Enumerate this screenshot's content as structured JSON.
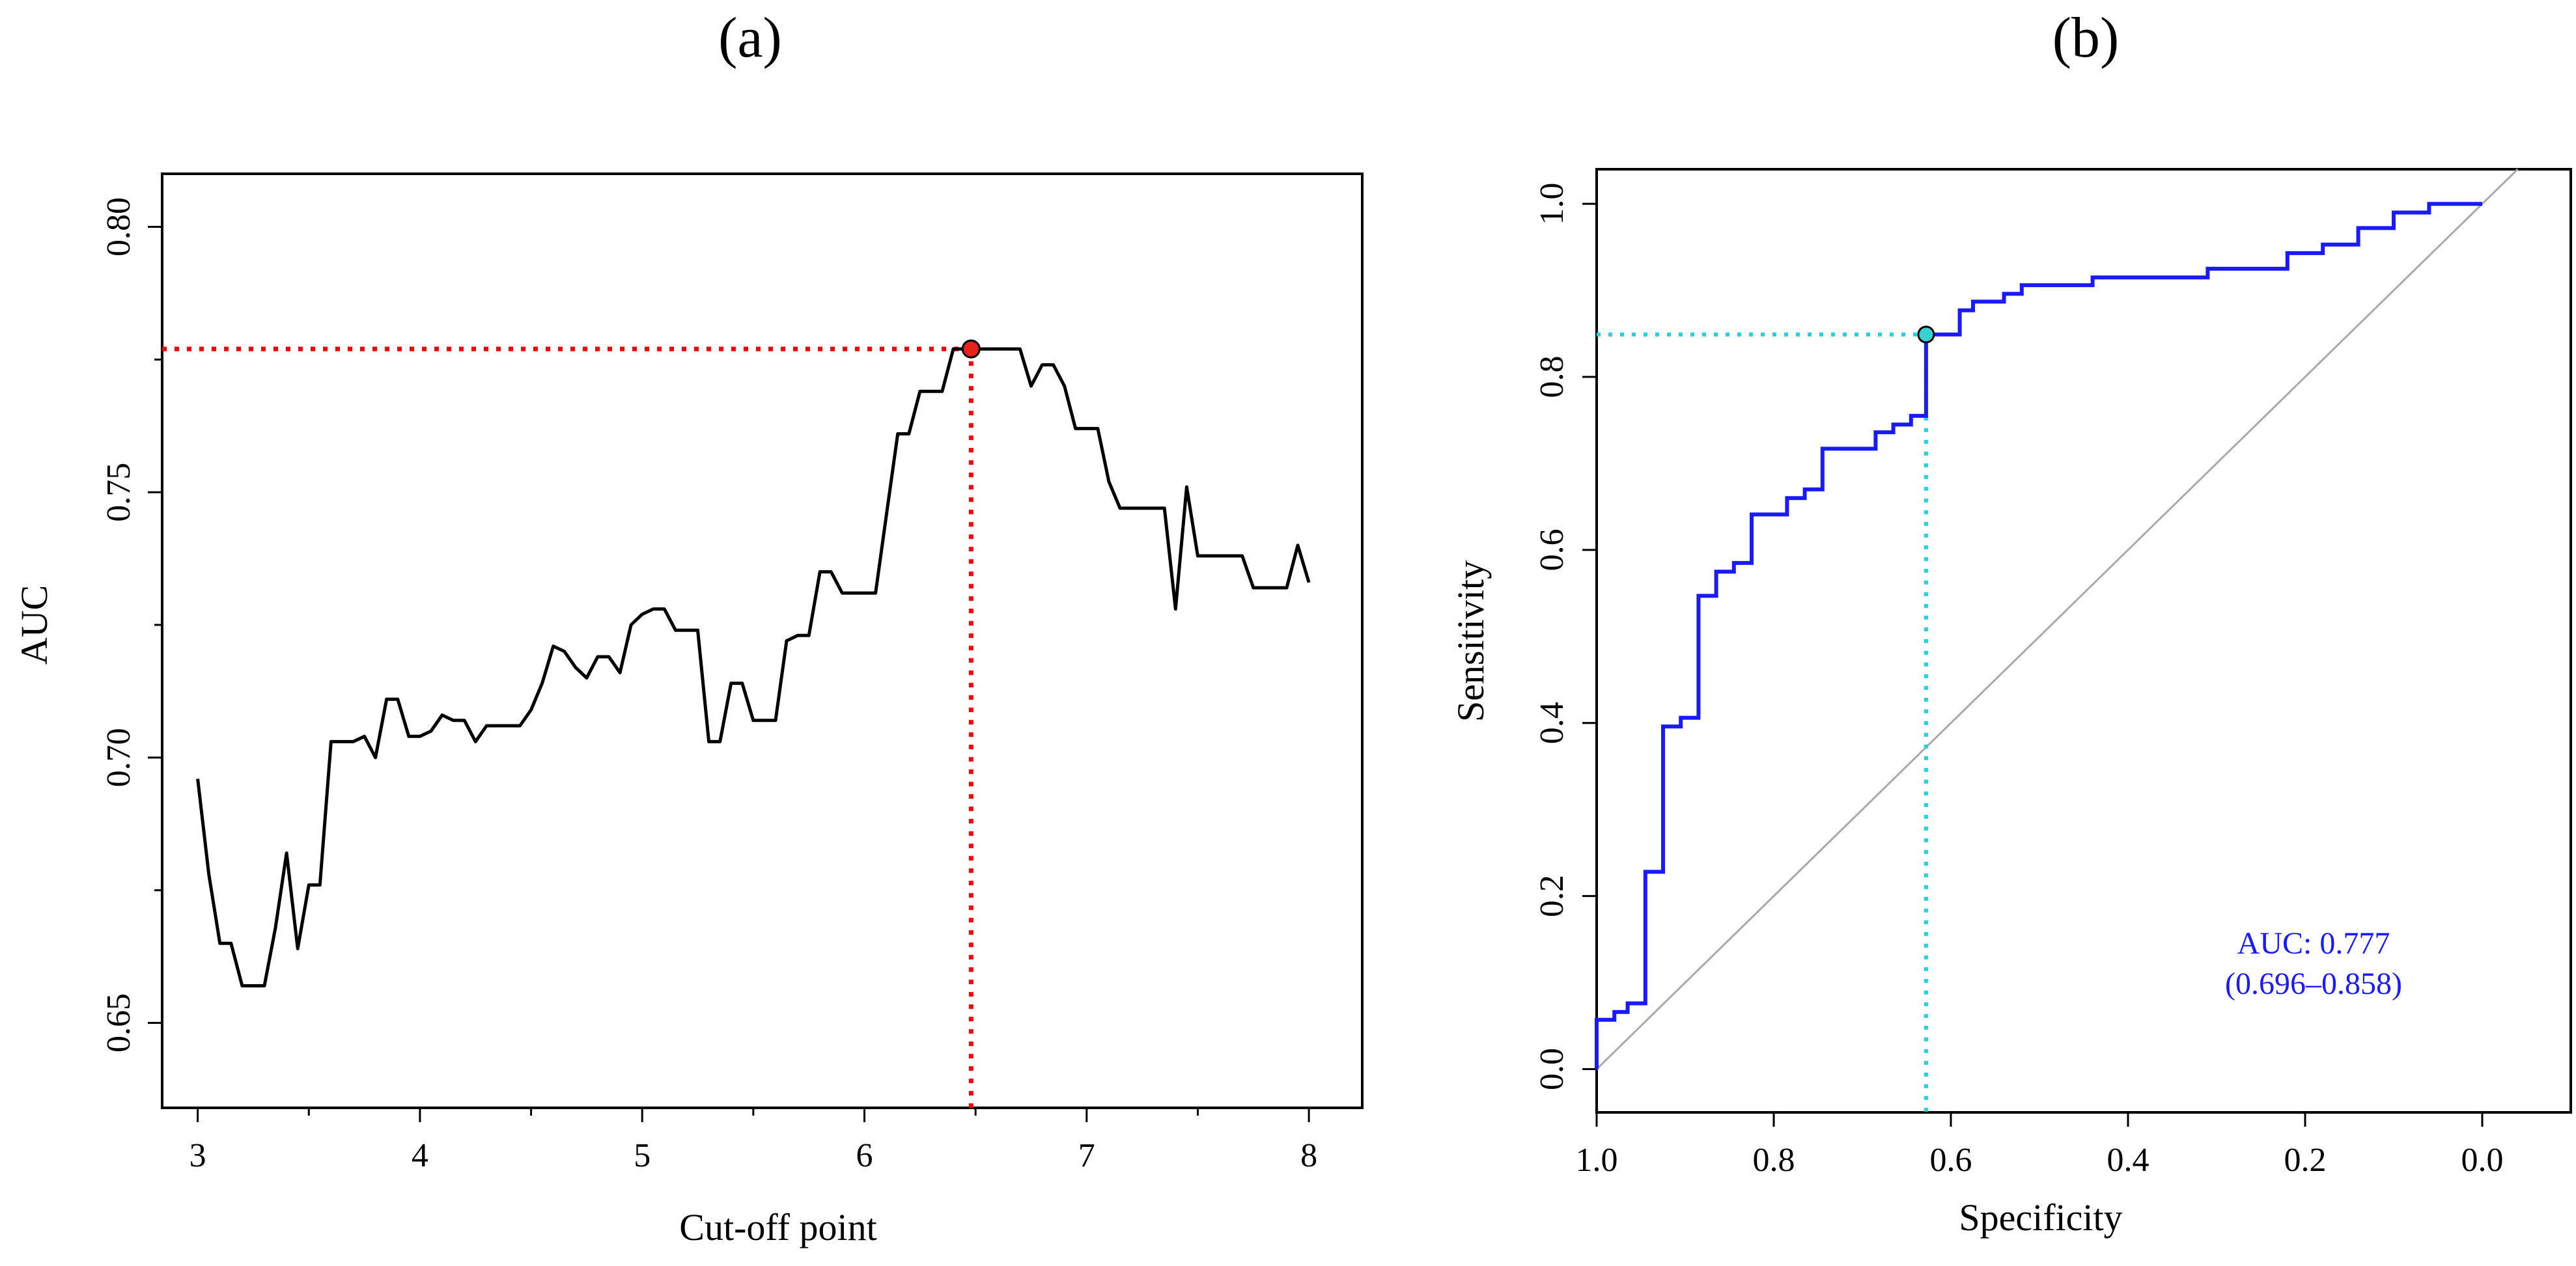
{
  "chart_data": [
    {
      "type": "line",
      "panel_label": "(a)",
      "xlabel": "Cut-off point",
      "ylabel": "AUC",
      "xlim": [
        2.84,
        8.24
      ],
      "ylim": [
        0.634,
        0.81
      ],
      "xticks": [
        3,
        4,
        5,
        6,
        7,
        8
      ],
      "xtick_labels": [
        "3",
        "4",
        "5",
        "6",
        "7",
        "8"
      ],
      "yticks": [
        0.65,
        0.7,
        0.75,
        0.8
      ],
      "ytick_labels": [
        "0.65",
        "0.70",
        "0.75",
        "0.80"
      ],
      "series": [
        {
          "name": "AUC by cut-off",
          "color": "#000000",
          "points": [
            [
              3.0,
              0.696
            ],
            [
              3.05,
              0.678
            ],
            [
              3.1,
              0.665
            ],
            [
              3.15,
              0.665
            ],
            [
              3.2,
              0.657
            ],
            [
              3.25,
              0.657
            ],
            [
              3.3,
              0.657
            ],
            [
              3.35,
              0.668
            ],
            [
              3.4,
              0.682
            ],
            [
              3.45,
              0.664
            ],
            [
              3.5,
              0.676
            ],
            [
              3.55,
              0.676
            ],
            [
              3.6,
              0.703
            ],
            [
              3.65,
              0.703
            ],
            [
              3.7,
              0.703
            ],
            [
              3.75,
              0.704
            ],
            [
              3.8,
              0.7
            ],
            [
              3.85,
              0.711
            ],
            [
              3.9,
              0.711
            ],
            [
              3.95,
              0.704
            ],
            [
              4.0,
              0.704
            ],
            [
              4.05,
              0.705
            ],
            [
              4.1,
              0.708
            ],
            [
              4.15,
              0.707
            ],
            [
              4.2,
              0.707
            ],
            [
              4.25,
              0.703
            ],
            [
              4.3,
              0.706
            ],
            [
              4.35,
              0.706
            ],
            [
              4.4,
              0.706
            ],
            [
              4.45,
              0.706
            ],
            [
              4.5,
              0.709
            ],
            [
              4.55,
              0.714
            ],
            [
              4.6,
              0.721
            ],
            [
              4.65,
              0.72
            ],
            [
              4.7,
              0.717
            ],
            [
              4.75,
              0.715
            ],
            [
              4.8,
              0.719
            ],
            [
              4.85,
              0.719
            ],
            [
              4.9,
              0.716
            ],
            [
              4.95,
              0.725
            ],
            [
              5.0,
              0.727
            ],
            [
              5.05,
              0.728
            ],
            [
              5.1,
              0.728
            ],
            [
              5.15,
              0.724
            ],
            [
              5.2,
              0.724
            ],
            [
              5.25,
              0.724
            ],
            [
              5.3,
              0.703
            ],
            [
              5.35,
              0.703
            ],
            [
              5.4,
              0.714
            ],
            [
              5.45,
              0.714
            ],
            [
              5.5,
              0.707
            ],
            [
              5.55,
              0.707
            ],
            [
              5.6,
              0.707
            ],
            [
              5.65,
              0.722
            ],
            [
              5.7,
              0.723
            ],
            [
              5.75,
              0.723
            ],
            [
              5.8,
              0.735
            ],
            [
              5.85,
              0.735
            ],
            [
              5.9,
              0.731
            ],
            [
              5.95,
              0.731
            ],
            [
              6.0,
              0.731
            ],
            [
              6.05,
              0.731
            ],
            [
              6.1,
              0.746
            ],
            [
              6.15,
              0.761
            ],
            [
              6.2,
              0.761
            ],
            [
              6.25,
              0.769
            ],
            [
              6.3,
              0.769
            ],
            [
              6.35,
              0.769
            ],
            [
              6.4,
              0.777
            ],
            [
              6.45,
              0.777
            ],
            [
              6.5,
              0.777
            ],
            [
              6.55,
              0.777
            ],
            [
              6.6,
              0.777
            ],
            [
              6.65,
              0.777
            ],
            [
              6.7,
              0.777
            ],
            [
              6.75,
              0.77
            ],
            [
              6.8,
              0.774
            ],
            [
              6.85,
              0.774
            ],
            [
              6.9,
              0.77
            ],
            [
              6.95,
              0.762
            ],
            [
              7.0,
              0.762
            ],
            [
              7.05,
              0.762
            ],
            [
              7.1,
              0.752
            ],
            [
              7.15,
              0.747
            ],
            [
              7.2,
              0.747
            ],
            [
              7.25,
              0.747
            ],
            [
              7.3,
              0.747
            ],
            [
              7.35,
              0.747
            ],
            [
              7.4,
              0.728
            ],
            [
              7.45,
              0.751
            ],
            [
              7.5,
              0.738
            ],
            [
              7.55,
              0.738
            ],
            [
              7.6,
              0.738
            ],
            [
              7.65,
              0.738
            ],
            [
              7.7,
              0.738
            ],
            [
              7.75,
              0.732
            ],
            [
              7.8,
              0.732
            ],
            [
              7.85,
              0.732
            ],
            [
              7.9,
              0.732
            ],
            [
              7.95,
              0.74
            ],
            [
              8.0,
              0.733
            ]
          ]
        }
      ],
      "optimal_point": {
        "x": 6.48,
        "y": 0.777,
        "color": "#e8221b",
        "line_color": "#ff0000"
      }
    },
    {
      "type": "line",
      "panel_label": "(b)",
      "xlabel": "Specificity",
      "ylabel": "Sensitivity",
      "xlim": [
        1.0,
        -0.1
      ],
      "ylim": [
        -0.05,
        1.04
      ],
      "xticks": [
        1.0,
        0.8,
        0.6,
        0.4,
        0.2,
        0.0
      ],
      "xtick_labels": [
        "1.0",
        "0.8",
        "0.6",
        "0.4",
        "0.2",
        "0.0"
      ],
      "yticks": [
        0.0,
        0.2,
        0.4,
        0.6,
        0.8,
        1.0
      ],
      "ytick_labels": [
        "0.0",
        "0.2",
        "0.4",
        "0.6",
        "0.8",
        "1.0"
      ],
      "series": [
        {
          "name": "ROC curve",
          "color": "#1a1aff",
          "points": [
            [
              1.0,
              0.0
            ],
            [
              1.0,
              0.057
            ],
            [
              0.98,
              0.057
            ],
            [
              0.98,
              0.066
            ],
            [
              0.965,
              0.066
            ],
            [
              0.965,
              0.076
            ],
            [
              0.945,
              0.076
            ],
            [
              0.945,
              0.228
            ],
            [
              0.925,
              0.228
            ],
            [
              0.925,
              0.396
            ],
            [
              0.905,
              0.396
            ],
            [
              0.905,
              0.406
            ],
            [
              0.885,
              0.406
            ],
            [
              0.885,
              0.547
            ],
            [
              0.865,
              0.547
            ],
            [
              0.865,
              0.575
            ],
            [
              0.845,
              0.575
            ],
            [
              0.845,
              0.585
            ],
            [
              0.825,
              0.585
            ],
            [
              0.825,
              0.641
            ],
            [
              0.785,
              0.641
            ],
            [
              0.785,
              0.66
            ],
            [
              0.765,
              0.66
            ],
            [
              0.765,
              0.67
            ],
            [
              0.745,
              0.67
            ],
            [
              0.745,
              0.717
            ],
            [
              0.685,
              0.717
            ],
            [
              0.685,
              0.736
            ],
            [
              0.665,
              0.736
            ],
            [
              0.665,
              0.745
            ],
            [
              0.645,
              0.745
            ],
            [
              0.645,
              0.755
            ],
            [
              0.628,
              0.755
            ],
            [
              0.628,
              0.849
            ],
            [
              0.59,
              0.849
            ],
            [
              0.59,
              0.877
            ],
            [
              0.575,
              0.877
            ],
            [
              0.575,
              0.887
            ],
            [
              0.54,
              0.887
            ],
            [
              0.54,
              0.896
            ],
            [
              0.52,
              0.896
            ],
            [
              0.52,
              0.906
            ],
            [
              0.44,
              0.906
            ],
            [
              0.44,
              0.915
            ],
            [
              0.31,
              0.915
            ],
            [
              0.31,
              0.925
            ],
            [
              0.22,
              0.925
            ],
            [
              0.22,
              0.943
            ],
            [
              0.18,
              0.943
            ],
            [
              0.18,
              0.953
            ],
            [
              0.14,
              0.953
            ],
            [
              0.14,
              0.972
            ],
            [
              0.1,
              0.972
            ],
            [
              0.1,
              0.99
            ],
            [
              0.06,
              0.99
            ],
            [
              0.06,
              1.0
            ],
            [
              0.0,
              1.0
            ]
          ]
        },
        {
          "name": "reference diagonal",
          "color": "#aaaaaa",
          "points": [
            [
              1.0,
              0.0
            ],
            [
              -0.04,
              1.04
            ]
          ]
        }
      ],
      "optimal_point": {
        "x": 0.628,
        "y": 0.849,
        "color": "#36d3d3",
        "line_color": "#22d3e0"
      },
      "annotation_lines": [
        "AUC: 0.777",
        "(0.696–0.858)"
      ],
      "annotation_color": "#1a1aff"
    }
  ]
}
